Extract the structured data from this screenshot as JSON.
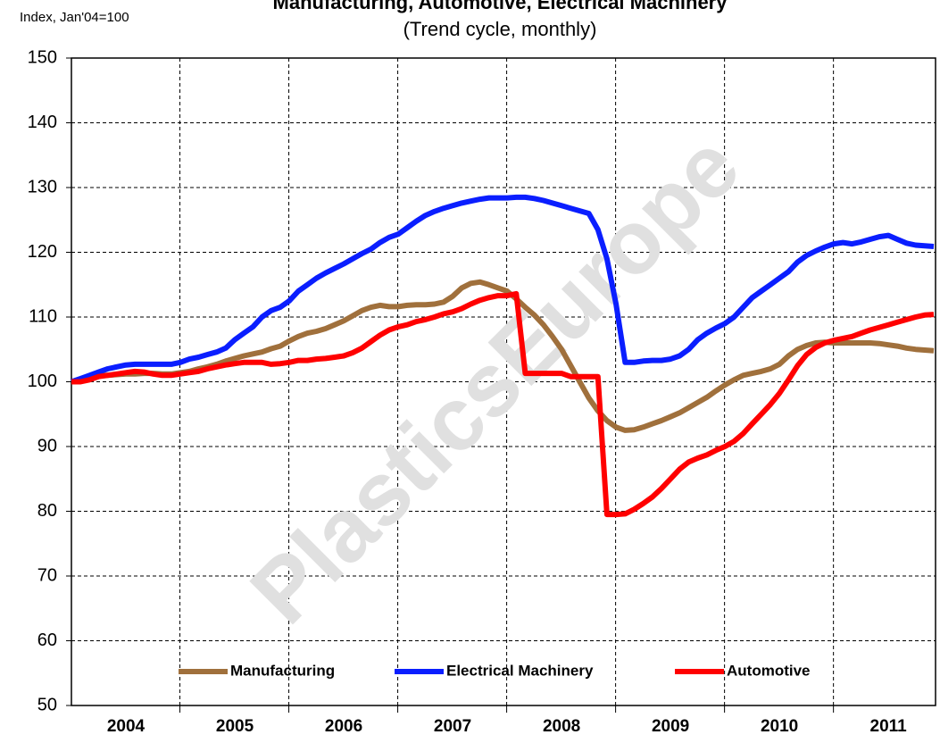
{
  "chart_data": {
    "type": "line",
    "title": "Manufacturing, Automotive, Electrical Machinery",
    "subtitle": "(Trend cycle, monthly)",
    "y_axis_label": "Index, Jan'04=100",
    "watermark": "PlasticsEurope",
    "categories": [
      null,
      null,
      null,
      null,
      null,
      null,
      "2004",
      null,
      null,
      null,
      null,
      null,
      null,
      null,
      null,
      null,
      null,
      null,
      "2005",
      null,
      null,
      null,
      null,
      null,
      null,
      null,
      null,
      null,
      null,
      null,
      "2006",
      null,
      null,
      null,
      null,
      null,
      null,
      null,
      null,
      null,
      null,
      null,
      "2007",
      null,
      null,
      null,
      null,
      null,
      null,
      null,
      null,
      null,
      null,
      null,
      "2008",
      null,
      null,
      null,
      null,
      null,
      null,
      null,
      null,
      null,
      null,
      null,
      "2009",
      null,
      null,
      null,
      null,
      null,
      null,
      null,
      null,
      null,
      null,
      null,
      "2010",
      null,
      null,
      null,
      null,
      null,
      null,
      null,
      null,
      null,
      null,
      null,
      "2011",
      null,
      null,
      null,
      null,
      null
    ],
    "ylim": [
      50,
      150
    ],
    "yticks": [
      50,
      60,
      70,
      80,
      90,
      100,
      110,
      120,
      130,
      140,
      150
    ],
    "grid": true,
    "legend": "bottom",
    "series": [
      {
        "name": "Manufacturing",
        "color": "#a0703c",
        "values": [
          100,
          100.3,
          100.6,
          101,
          101,
          101.1,
          101.2,
          101.2,
          101.3,
          101.3,
          101.2,
          101.2,
          101.4,
          101.6,
          102,
          102.3,
          102.7,
          103.2,
          103.6,
          104,
          104.3,
          104.6,
          105.1,
          105.5,
          106.3,
          107,
          107.5,
          107.8,
          108.2,
          108.8,
          109.4,
          110.2,
          111,
          111.5,
          111.8,
          111.6,
          111.6,
          111.8,
          111.9,
          111.9,
          112,
          112.3,
          113.2,
          114.5,
          115.2,
          115.4,
          115,
          114.5,
          114,
          112.8,
          111.5,
          110.3,
          108.8,
          107,
          105,
          102.5,
          100,
          97.5,
          95.5,
          94,
          93,
          92.5,
          92.6,
          93,
          93.5,
          94,
          94.6,
          95.2,
          96,
          96.8,
          97.6,
          98.6,
          99.5,
          100.3,
          101,
          101.3,
          101.6,
          102,
          102.7,
          104,
          105,
          105.6,
          106,
          106.1,
          106,
          106,
          106,
          106,
          106,
          105.9,
          105.7,
          105.5,
          105.2,
          105,
          104.9,
          104.8
        ]
      },
      {
        "name": "Electrical Machinery",
        "color": "#0a1eff",
        "values": [
          100,
          100.5,
          101,
          101.5,
          102,
          102.3,
          102.6,
          102.7,
          102.7,
          102.7,
          102.7,
          102.7,
          103,
          103.5,
          103.8,
          104.2,
          104.6,
          105.2,
          106.5,
          107.5,
          108.5,
          110,
          111,
          111.5,
          112.5,
          114,
          115,
          116,
          116.8,
          117.5,
          118.2,
          119,
          119.8,
          120.5,
          121.5,
          122.3,
          122.8,
          123.8,
          124.8,
          125.7,
          126.3,
          126.8,
          127.2,
          127.6,
          127.9,
          128.2,
          128.4,
          128.4,
          128.4,
          128.5,
          128.5,
          128.3,
          128,
          127.6,
          127.2,
          126.8,
          126.4,
          126,
          123.5,
          119,
          112,
          103,
          103,
          103.2,
          103.3,
          103.3,
          103.5,
          104,
          105,
          106.5,
          107.5,
          108.3,
          109,
          110,
          111.5,
          113,
          114,
          115,
          116,
          117,
          118.5,
          119.5,
          120.2,
          120.8,
          121.3,
          121.5,
          121.3,
          121.6,
          122,
          122.4,
          122.6,
          122,
          121.4,
          121.1,
          121,
          120.9
        ]
      },
      {
        "name": "Automotive",
        "color": "#ff0000",
        "values": [
          100,
          100,
          100.3,
          100.8,
          101,
          101.2,
          101.4,
          101.6,
          101.5,
          101.2,
          101,
          101,
          101.2,
          101.4,
          101.6,
          102,
          102.3,
          102.6,
          102.8,
          103,
          103,
          103,
          102.7,
          102.8,
          103,
          103.3,
          103.3,
          103.5,
          103.6,
          103.8,
          104,
          104.5,
          105.2,
          106.2,
          107.2,
          108,
          108.5,
          108.8,
          109.3,
          109.6,
          110,
          110.5,
          110.8,
          111.3,
          112,
          112.6,
          113,
          113.3,
          113.3,
          113.6,
          101.3,
          101.3,
          101.3,
          101.3,
          101.3,
          100.8,
          100.8,
          100.8,
          100.8,
          79.5,
          79.5,
          79.6,
          80.3,
          81.2,
          82.2,
          83.5,
          85,
          86.5,
          87.6,
          88.2,
          88.7,
          89.4,
          90,
          90.8,
          92,
          93.5,
          95,
          96.5,
          98.2,
          100.3,
          102.5,
          104.2,
          105.3,
          106,
          106.4,
          106.7,
          107,
          107.5,
          108,
          108.4,
          108.8,
          109.2,
          109.6,
          110,
          110.3,
          110.4
        ]
      }
    ]
  }
}
